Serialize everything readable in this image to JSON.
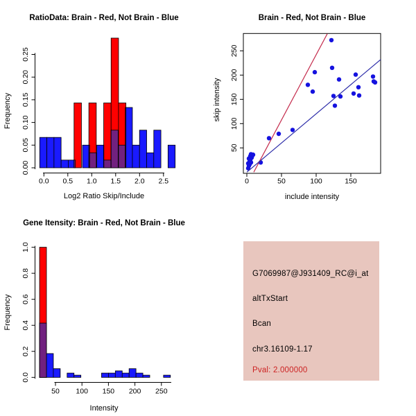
{
  "window": {
    "background": "#FFFFFF"
  },
  "colors": {
    "blue": "#1A1AFF",
    "red": "#FF0000",
    "purple": "#71217F",
    "dot_blue": "#1512DF",
    "blue_line": "#2B2BA8",
    "red_line": "#C42B4C",
    "panel_pink": "#E8C6BE",
    "pval_red": "#CC2222",
    "axis_black": "#000000"
  },
  "chart_data": [
    {
      "id": "ratio_histogram",
      "type": "histogram",
      "title": "RatioData: Brain - Red, Not Brain - Blue",
      "xlabel": "Log2 Ratio Skip/Include",
      "ylabel": "Frequency",
      "x_ticks": [
        0,
        0.5,
        1,
        1.5,
        2,
        2.5
      ],
      "x_tick_labels": [
        "0.0",
        "0.5",
        "1.0",
        "1.5",
        "2.0",
        "2.5"
      ],
      "y_ticks": [
        0,
        0.05,
        0.1,
        0.15,
        0.2,
        0.25
      ],
      "y_tick_labels": [
        "0.00",
        "0.05",
        "0.10",
        "0.15",
        "0.20",
        "0.25"
      ],
      "ylim": [
        0,
        0.29
      ],
      "grid": false,
      "series": [
        {
          "name": "Not Brain (blue)",
          "color": "blue",
          "bin_start": -0.087,
          "bin_width": 0.149,
          "frequencies": [
            0.067,
            0.067,
            0.067,
            0.017,
            0.017,
            0,
            0.05,
            0.033,
            0.05,
            0.017,
            0.083,
            0.05,
            0.133,
            0.05,
            0.083,
            0.033,
            0.083,
            0,
            0.05
          ]
        },
        {
          "name": "Brain (red)",
          "color": "red",
          "bin_start": 0.63,
          "bin_width": 0.155,
          "frequencies": [
            0.143,
            0,
            0.143,
            0,
            0.143,
            0.286,
            0.143
          ]
        }
      ],
      "overlap_color": "purple"
    },
    {
      "id": "intensity_scatter",
      "type": "scatter",
      "title": "Brain - Red, Not Brain - Blue",
      "xlabel": "include intensity",
      "ylabel": "skip intensity",
      "x_ticks": [
        0,
        50,
        100,
        150
      ],
      "x_tick_labels": [
        "0",
        "50",
        "100",
        "150"
      ],
      "y_ticks": [
        50,
        100,
        150,
        200,
        250
      ],
      "y_tick_labels": [
        "50",
        "100",
        "150",
        "200",
        "250"
      ],
      "xlim": [
        -5,
        193
      ],
      "ylim": [
        0,
        285
      ],
      "grid": false,
      "points": [
        [
          2,
          8
        ],
        [
          3,
          13
        ],
        [
          2,
          18
        ],
        [
          4,
          22
        ],
        [
          3,
          28
        ],
        [
          5,
          33
        ],
        [
          6,
          37
        ],
        [
          7,
          30
        ],
        [
          8,
          34
        ],
        [
          5,
          25
        ],
        [
          4,
          16
        ],
        [
          6,
          20
        ],
        [
          9,
          36
        ],
        [
          20,
          20
        ],
        [
          32,
          70
        ],
        [
          46,
          79
        ],
        [
          66,
          87
        ],
        [
          88,
          180
        ],
        [
          95,
          166
        ],
        [
          98,
          206
        ],
        [
          122,
          272
        ],
        [
          123,
          215
        ],
        [
          125,
          157
        ],
        [
          127,
          137
        ],
        [
          133,
          191
        ],
        [
          135,
          156
        ],
        [
          154,
          162
        ],
        [
          157,
          201
        ],
        [
          161,
          175
        ],
        [
          162,
          158
        ],
        [
          182,
          197
        ],
        [
          183,
          187
        ],
        [
          185,
          185
        ]
      ],
      "lines": [
        {
          "name": "brain fit line",
          "color": "red_line",
          "from": [
            10,
            0
          ],
          "to": [
            116,
            285
          ]
        },
        {
          "name": "not brain fit line",
          "color": "blue_line",
          "from": [
            0,
            0
          ],
          "to": [
            193,
            232
          ]
        }
      ]
    },
    {
      "id": "gene_intensity_histogram",
      "type": "histogram",
      "title": "Gene Itensity: Brain - Red, Not Brain - Blue",
      "xlabel": "Intensity",
      "ylabel": "Frequency",
      "x_ticks": [
        50,
        100,
        150,
        200,
        250
      ],
      "x_tick_labels": [
        "50",
        "100",
        "150",
        "200",
        "250"
      ],
      "y_ticks": [
        0,
        0.2,
        0.4,
        0.6,
        0.8,
        1
      ],
      "y_tick_labels": [
        "0.0",
        "0.2",
        "0.4",
        "0.6",
        "0.8",
        "1.0"
      ],
      "ylim": [
        0,
        1
      ],
      "grid": false,
      "series": [
        {
          "name": "Not Brain (blue)",
          "color": "blue",
          "bin_start": 20,
          "bin_width": 13,
          "frequencies": [
            0.417,
            0.183,
            0.067,
            0,
            0.033,
            0.017,
            0,
            0,
            0,
            0.033,
            0.033,
            0.05,
            0.033,
            0.067,
            0.033,
            0.017,
            0,
            0,
            0.017
          ]
        },
        {
          "name": "Brain (red)",
          "color": "red",
          "bin_start": 20,
          "bin_width": 13,
          "frequencies": [
            1.0
          ]
        }
      ],
      "overlap_color": "purple"
    }
  ],
  "info_panel": {
    "probe_id": "G7069987@J931409_RC@i_at",
    "event_type": "altTxStart",
    "gene": "Bcan",
    "locus": "chr3.16109-1.17",
    "pval": "Pval: 2.000000"
  }
}
